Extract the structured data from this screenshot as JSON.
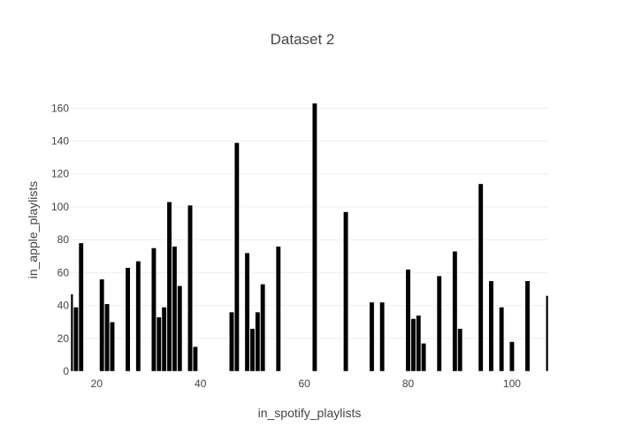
{
  "chart_data": {
    "type": "bar",
    "title": "Dataset 2",
    "xlabel": "in_spotify_playlists",
    "ylabel": "in_apple_playlists",
    "xlim": [
      15,
      107
    ],
    "ylim": [
      0,
      172
    ],
    "x_ticks": [
      20,
      40,
      60,
      80,
      100
    ],
    "y_ticks": [
      0,
      20,
      40,
      60,
      80,
      100,
      120,
      140,
      160
    ],
    "grid": true,
    "bar_color": "#000000",
    "x": [
      15,
      16,
      17,
      21,
      22,
      23,
      26,
      28,
      31,
      32,
      33,
      34,
      35,
      36,
      38,
      39,
      46,
      47,
      49,
      50,
      51,
      52,
      55,
      62,
      68,
      73,
      75,
      80,
      81,
      82,
      83,
      86,
      89,
      90,
      94,
      96,
      98,
      100,
      103,
      107
    ],
    "values": [
      47,
      39,
      78,
      56,
      41,
      30,
      63,
      67,
      75,
      33,
      39,
      103,
      76,
      52,
      101,
      15,
      36,
      139,
      72,
      26,
      36,
      53,
      76,
      163,
      97,
      42,
      42,
      62,
      32,
      34,
      17,
      58,
      73,
      26,
      114,
      55,
      39,
      18,
      55,
      46
    ]
  }
}
